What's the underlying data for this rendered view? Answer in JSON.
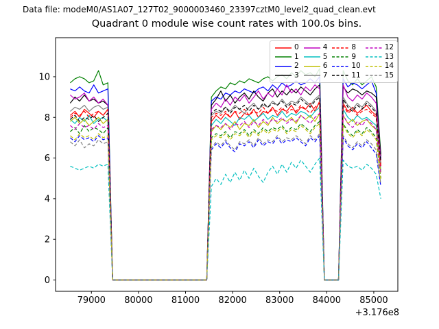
{
  "header": {
    "data_file_label": "Data file: modeM0/AS1A07_127T02_9000003460_23397cztM0_level2_quad_clean.evt",
    "title": "Quadrant 0 module wise count rates with 100.0s bins."
  },
  "chart_data": {
    "type": "line",
    "title": "Quadrant 0 module wise count rates with 100.0s bins.",
    "xlabel": "",
    "ylabel": "",
    "x_offset_text": "+3.176e8",
    "grid": false,
    "legend_position": "upper right",
    "legend_ncol": 4,
    "xlim": [
      78238,
      85511
    ],
    "ylim": [
      -0.556,
      11.92
    ],
    "xticks": [
      79000,
      80000,
      81000,
      82000,
      83000,
      84000,
      85000
    ],
    "yticks": [
      0,
      2,
      4,
      6,
      8,
      10
    ],
    "x": [
      78550,
      78650,
      78750,
      78850,
      78950,
      79050,
      79150,
      79250,
      79350,
      79450,
      79550,
      79650,
      79750,
      79850,
      79950,
      80050,
      80150,
      80250,
      80350,
      80450,
      80550,
      80650,
      80750,
      80850,
      80950,
      81050,
      81150,
      81250,
      81350,
      81450,
      81550,
      81650,
      81750,
      81850,
      81950,
      82050,
      82150,
      82250,
      82350,
      82450,
      82550,
      82650,
      82750,
      82850,
      82950,
      83050,
      83150,
      83250,
      83350,
      83450,
      83550,
      83650,
      83750,
      83850,
      83950,
      84050,
      84150,
      84250,
      84350,
      84450,
      84550,
      84650,
      84750,
      84850,
      84950,
      85050,
      85150
    ],
    "series": [
      {
        "name": "0",
        "color": "#ff0000",
        "style": "solid",
        "values": [
          8.1,
          8.3,
          8.0,
          8.4,
          8.2,
          8.0,
          8.3,
          8.1,
          8.4,
          0,
          0,
          0,
          0,
          0,
          0,
          0,
          0,
          0,
          0,
          0,
          0,
          0,
          0,
          0,
          0,
          0,
          0,
          0,
          0,
          0,
          7.8,
          8.1,
          7.9,
          8.2,
          8.0,
          8.3,
          7.9,
          8.2,
          8.1,
          8.4,
          8.0,
          8.3,
          8.2,
          8.5,
          8.1,
          8.4,
          8.3,
          8.6,
          8.2,
          8.5,
          8.4,
          8.7,
          8.3,
          8.8,
          0,
          0,
          0,
          0,
          8.7,
          8.3,
          8.5,
          8.2,
          8.4,
          8.6,
          8.3,
          8.1,
          5.7
        ]
      },
      {
        "name": "1",
        "color": "#008000",
        "style": "solid",
        "values": [
          9.7,
          9.9,
          10.0,
          9.9,
          9.7,
          9.8,
          10.3,
          9.6,
          9.7,
          0,
          0,
          0,
          0,
          0,
          0,
          0,
          0,
          0,
          0,
          0,
          0,
          0,
          0,
          0,
          0,
          0,
          0,
          0,
          0,
          0,
          9.0,
          9.3,
          9.5,
          9.4,
          9.7,
          9.6,
          9.8,
          9.7,
          9.9,
          9.8,
          9.7,
          9.9,
          10.0,
          9.8,
          10.0,
          10.1,
          9.9,
          10.2,
          10.0,
          10.3,
          10.1,
          10.2,
          10.0,
          10.4,
          0,
          0,
          0,
          0,
          10.3,
          9.8,
          9.6,
          9.9,
          9.6,
          9.8,
          10.0,
          9.5,
          6.2
        ]
      },
      {
        "name": "2",
        "color": "#0000ff",
        "style": "solid",
        "values": [
          9.4,
          9.3,
          9.5,
          9.3,
          9.2,
          9.6,
          9.2,
          9.3,
          9.4,
          0,
          0,
          0,
          0,
          0,
          0,
          0,
          0,
          0,
          0,
          0,
          0,
          0,
          0,
          0,
          0,
          0,
          0,
          0,
          0,
          0,
          8.8,
          9.0,
          8.9,
          9.2,
          9.1,
          9.3,
          9.2,
          9.4,
          9.3,
          9.2,
          9.4,
          9.5,
          9.3,
          9.6,
          9.4,
          9.7,
          9.5,
          9.6,
          9.8,
          9.6,
          9.7,
          9.9,
          9.7,
          10.0,
          0,
          0,
          0,
          0,
          9.9,
          9.5,
          9.7,
          9.6,
          9.4,
          9.6,
          9.8,
          9.2,
          6.0
        ]
      },
      {
        "name": "3",
        "color": "#000000",
        "style": "solid",
        "values": [
          8.7,
          9.0,
          8.8,
          9.1,
          8.8,
          8.9,
          8.7,
          8.8,
          8.6,
          0,
          0,
          0,
          0,
          0,
          0,
          0,
          0,
          0,
          0,
          0,
          0,
          0,
          0,
          0,
          0,
          0,
          0,
          0,
          0,
          0,
          8.6,
          8.9,
          9.3,
          8.8,
          9.1,
          8.7,
          9.0,
          9.2,
          8.9,
          9.3,
          9.0,
          8.8,
          9.2,
          9.4,
          9.0,
          9.3,
          9.1,
          9.4,
          9.2,
          9.5,
          9.3,
          9.1,
          9.4,
          9.6,
          0,
          0,
          0,
          0,
          9.5,
          9.2,
          9.4,
          9.3,
          9.1,
          9.3,
          9.2,
          9.0,
          6.1
        ]
      },
      {
        "name": "4",
        "color": "#bf00bf",
        "style": "solid",
        "values": [
          9.1,
          8.9,
          9.0,
          9.2,
          8.8,
          9.0,
          8.7,
          8.9,
          8.6,
          0,
          0,
          0,
          0,
          0,
          0,
          0,
          0,
          0,
          0,
          0,
          0,
          0,
          0,
          0,
          0,
          0,
          0,
          0,
          0,
          0,
          8.4,
          8.7,
          8.5,
          8.9,
          8.6,
          9.0,
          8.8,
          9.1,
          8.7,
          9.0,
          9.3,
          8.9,
          9.2,
          9.0,
          9.4,
          9.1,
          9.6,
          9.2,
          9.4,
          9.1,
          9.5,
          9.3,
          9.6,
          9.4,
          0,
          0,
          0,
          0,
          9.6,
          9.0,
          8.8,
          9.1,
          8.9,
          9.2,
          9.0,
          8.7,
          5.9
        ]
      },
      {
        "name": "5",
        "color": "#00bfbf",
        "style": "solid",
        "values": [
          7.9,
          7.7,
          8.0,
          7.8,
          8.1,
          7.7,
          7.9,
          8.0,
          7.8,
          0,
          0,
          0,
          0,
          0,
          0,
          0,
          0,
          0,
          0,
          0,
          0,
          0,
          0,
          0,
          0,
          0,
          0,
          0,
          0,
          0,
          7.6,
          7.9,
          7.7,
          8.0,
          7.8,
          7.6,
          8.0,
          7.9,
          8.1,
          7.8,
          8.0,
          8.2,
          7.9,
          8.1,
          8.0,
          8.3,
          8.0,
          8.2,
          8.1,
          8.3,
          8.2,
          8.0,
          8.3,
          8.5,
          0,
          0,
          0,
          0,
          8.4,
          8.0,
          7.8,
          8.1,
          7.9,
          8.0,
          7.8,
          7.6,
          5.4
        ]
      },
      {
        "name": "6",
        "color": "#bfbf00",
        "style": "solid",
        "values": [
          7.8,
          8.0,
          7.7,
          7.9,
          7.6,
          7.8,
          8.0,
          7.7,
          7.9,
          0,
          0,
          0,
          0,
          0,
          0,
          0,
          0,
          0,
          0,
          0,
          0,
          0,
          0,
          0,
          0,
          0,
          0,
          0,
          0,
          0,
          7.3,
          7.6,
          7.4,
          7.7,
          7.5,
          7.8,
          7.4,
          7.7,
          7.6,
          7.9,
          7.5,
          7.8,
          7.6,
          8.0,
          7.7,
          7.9,
          7.8,
          8.0,
          7.7,
          8.1,
          7.9,
          8.1,
          7.8,
          8.2,
          0,
          0,
          0,
          0,
          8.1,
          7.7,
          7.9,
          7.6,
          7.8,
          7.9,
          7.6,
          7.4,
          5.3
        ]
      },
      {
        "name": "7",
        "color": "#808080",
        "style": "solid",
        "values": [
          8.3,
          8.5,
          8.4,
          8.6,
          8.3,
          8.5,
          8.6,
          8.4,
          8.5,
          0,
          0,
          0,
          0,
          0,
          0,
          0,
          0,
          0,
          0,
          0,
          0,
          0,
          0,
          0,
          0,
          0,
          0,
          0,
          0,
          0,
          8.1,
          8.3,
          8.2,
          8.5,
          8.3,
          8.6,
          8.4,
          8.2,
          8.5,
          8.7,
          8.4,
          8.6,
          8.5,
          8.8,
          8.6,
          8.9,
          8.6,
          8.8,
          8.7,
          9.0,
          8.8,
          8.6,
          8.9,
          9.1,
          0,
          0,
          0,
          0,
          9.0,
          8.6,
          8.4,
          8.7,
          8.5,
          8.8,
          8.6,
          8.3,
          5.6
        ]
      },
      {
        "name": "8",
        "color": "#ff0000",
        "style": "dashed",
        "values": [
          8.0,
          8.2,
          8.1,
          8.3,
          8.0,
          8.2,
          8.3,
          8.1,
          8.4,
          0,
          0,
          0,
          0,
          0,
          0,
          0,
          0,
          0,
          0,
          0,
          0,
          0,
          0,
          0,
          0,
          0,
          0,
          0,
          0,
          0,
          8.0,
          8.2,
          8.1,
          8.3,
          8.0,
          8.3,
          8.2,
          8.4,
          8.1,
          8.3,
          8.2,
          8.5,
          8.2,
          8.4,
          8.3,
          8.5,
          8.2,
          8.4,
          8.3,
          8.6,
          8.4,
          8.2,
          8.5,
          8.7,
          0,
          0,
          0,
          0,
          8.6,
          8.2,
          8.4,
          8.1,
          8.3,
          8.4,
          8.2,
          8.0,
          5.6
        ]
      },
      {
        "name": "9",
        "color": "#008000",
        "style": "dashed",
        "values": [
          7.3,
          7.5,
          7.2,
          7.6,
          7.3,
          7.5,
          7.4,
          7.2,
          7.5,
          0,
          0,
          0,
          0,
          0,
          0,
          0,
          0,
          0,
          0,
          0,
          0,
          0,
          0,
          0,
          0,
          0,
          0,
          0,
          0,
          0,
          7.0,
          7.2,
          7.1,
          7.3,
          7.0,
          7.3,
          7.2,
          7.4,
          7.1,
          7.4,
          7.2,
          7.5,
          7.3,
          7.5,
          7.4,
          7.6,
          7.3,
          7.5,
          7.4,
          7.7,
          7.5,
          7.3,
          7.6,
          7.8,
          0,
          0,
          0,
          0,
          7.7,
          7.3,
          7.1,
          7.4,
          7.2,
          7.5,
          7.3,
          7.0,
          5.0
        ]
      },
      {
        "name": "10",
        "color": "#0000ff",
        "style": "dashed",
        "values": [
          7.0,
          6.8,
          7.1,
          6.9,
          7.0,
          6.8,
          7.1,
          6.9,
          7.0,
          0,
          0,
          0,
          0,
          0,
          0,
          0,
          0,
          0,
          0,
          0,
          0,
          0,
          0,
          0,
          0,
          0,
          0,
          0,
          0,
          0,
          6.4,
          6.7,
          6.5,
          6.8,
          6.5,
          6.3,
          6.7,
          6.6,
          6.8,
          6.5,
          6.9,
          6.6,
          6.8,
          6.7,
          7.0,
          6.7,
          6.9,
          6.8,
          7.0,
          6.8,
          6.6,
          7.0,
          6.8,
          7.1,
          0,
          0,
          0,
          0,
          7.0,
          6.6,
          6.4,
          6.7,
          6.5,
          6.8,
          6.5,
          6.2,
          4.6
        ]
      },
      {
        "name": "11",
        "color": "#000000",
        "style": "dashed",
        "values": [
          7.9,
          8.1,
          7.8,
          8.0,
          7.9,
          8.1,
          7.8,
          8.0,
          8.2,
          0,
          0,
          0,
          0,
          0,
          0,
          0,
          0,
          0,
          0,
          0,
          0,
          0,
          0,
          0,
          0,
          0,
          0,
          0,
          0,
          0,
          8.2,
          8.4,
          8.3,
          8.5,
          8.2,
          8.5,
          8.4,
          8.6,
          8.3,
          8.6,
          8.4,
          8.7,
          8.5,
          8.7,
          8.6,
          8.8,
          8.5,
          8.7,
          8.6,
          8.9,
          8.7,
          8.5,
          8.8,
          9.0,
          0,
          0,
          0,
          0,
          8.9,
          8.5,
          8.3,
          8.6,
          8.4,
          8.7,
          8.5,
          8.2,
          5.8
        ]
      },
      {
        "name": "12",
        "color": "#bf00bf",
        "style": "dashed",
        "values": [
          7.6,
          7.4,
          7.7,
          7.5,
          7.6,
          7.4,
          7.7,
          7.5,
          7.6,
          0,
          0,
          0,
          0,
          0,
          0,
          0,
          0,
          0,
          0,
          0,
          0,
          0,
          0,
          0,
          0,
          0,
          0,
          0,
          0,
          0,
          7.4,
          7.6,
          7.5,
          7.7,
          7.4,
          7.7,
          7.6,
          7.8,
          7.5,
          7.8,
          7.6,
          7.9,
          7.7,
          7.9,
          7.8,
          8.0,
          7.7,
          7.9,
          7.8,
          8.1,
          7.9,
          7.7,
          8.0,
          8.2,
          0,
          0,
          0,
          0,
          8.1,
          7.7,
          7.5,
          7.8,
          7.6,
          7.9,
          7.7,
          7.4,
          5.2
        ]
      },
      {
        "name": "13",
        "color": "#00bfbf",
        "style": "dashed",
        "values": [
          5.6,
          5.5,
          5.4,
          5.5,
          5.6,
          5.5,
          5.7,
          5.6,
          5.7,
          0,
          0,
          0,
          0,
          0,
          0,
          0,
          0,
          0,
          0,
          0,
          0,
          0,
          0,
          0,
          0,
          0,
          0,
          0,
          0,
          0,
          4.6,
          5.0,
          4.7,
          5.2,
          4.8,
          5.3,
          4.9,
          5.4,
          5.0,
          5.5,
          5.1,
          4.8,
          5.3,
          5.6,
          5.2,
          5.7,
          5.3,
          5.8,
          5.5,
          5.9,
          5.6,
          5.3,
          5.7,
          6.0,
          0,
          0,
          0,
          0,
          5.9,
          5.6,
          5.5,
          5.6,
          5.4,
          5.7,
          5.5,
          5.2,
          4.0
        ]
      },
      {
        "name": "14",
        "color": "#bfbf00",
        "style": "dashed",
        "values": [
          7.1,
          6.9,
          7.2,
          7.0,
          7.1,
          6.9,
          7.2,
          7.0,
          7.1,
          0,
          0,
          0,
          0,
          0,
          0,
          0,
          0,
          0,
          0,
          0,
          0,
          0,
          0,
          0,
          0,
          0,
          0,
          0,
          0,
          0,
          6.9,
          7.1,
          7.0,
          7.2,
          6.9,
          7.2,
          7.1,
          7.3,
          7.0,
          7.3,
          7.1,
          7.4,
          7.2,
          7.4,
          7.3,
          7.5,
          7.2,
          7.4,
          7.3,
          7.6,
          7.4,
          7.2,
          7.5,
          7.7,
          0,
          0,
          0,
          0,
          7.6,
          7.2,
          7.0,
          7.3,
          7.1,
          7.4,
          7.2,
          6.9,
          4.9
        ]
      },
      {
        "name": "15",
        "color": "#808080",
        "style": "dashed",
        "values": [
          6.8,
          6.6,
          6.9,
          6.5,
          6.7,
          6.6,
          6.9,
          6.7,
          6.8,
          0,
          0,
          0,
          0,
          0,
          0,
          0,
          0,
          0,
          0,
          0,
          0,
          0,
          0,
          0,
          0,
          0,
          0,
          0,
          0,
          0,
          6.5,
          6.8,
          6.6,
          6.9,
          6.6,
          6.4,
          6.8,
          6.7,
          6.9,
          6.6,
          7.0,
          6.7,
          6.9,
          6.8,
          7.1,
          6.8,
          7.0,
          6.9,
          7.1,
          6.9,
          6.7,
          7.1,
          6.9,
          7.2,
          0,
          0,
          0,
          0,
          7.1,
          6.7,
          6.5,
          6.8,
          6.6,
          6.9,
          6.7,
          6.4,
          4.7
        ]
      }
    ]
  }
}
